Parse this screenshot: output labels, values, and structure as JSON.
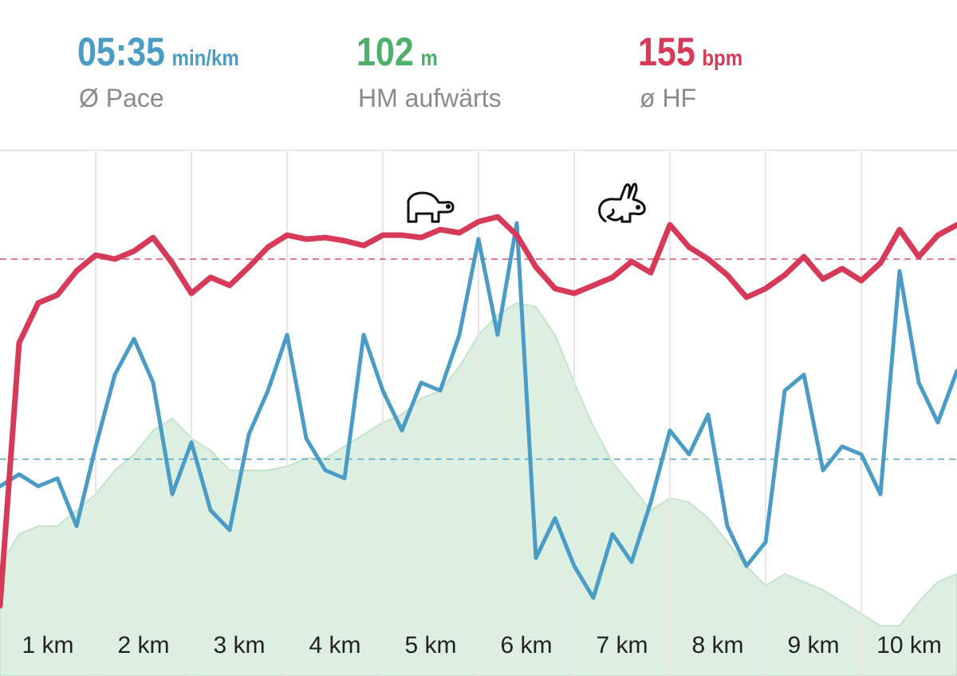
{
  "header": {
    "stats": [
      {
        "value": "05:35",
        "unit": "min/km",
        "label": "Ø Pace",
        "color": "#4a9cc6"
      },
      {
        "value": "102",
        "unit": "m",
        "label": "HM aufwärts",
        "color": "#4caf6a"
      },
      {
        "value": "155",
        "unit": "bpm",
        "label": "ø HF",
        "color": "#d63a58"
      }
    ]
  },
  "chart_data": {
    "type": "line",
    "categories": [
      "1 km",
      "2 km",
      "3 km",
      "4 km",
      "5 km",
      "6 km",
      "7 km",
      "8 km",
      "9 km",
      "10 km"
    ],
    "x": [
      0,
      0.2,
      0.4,
      0.6,
      0.8,
      1,
      1.2,
      1.4,
      1.6,
      1.8,
      2,
      2.2,
      2.4,
      2.6,
      2.8,
      3,
      3.2,
      3.4,
      3.6,
      3.8,
      4,
      4.2,
      4.4,
      4.6,
      4.8,
      5,
      5.2,
      5.4,
      5.6,
      5.8,
      6,
      6.2,
      6.4,
      6.6,
      6.8,
      7,
      7.2,
      7.4,
      7.6,
      7.8,
      8,
      8.2,
      8.4,
      8.6,
      8.8,
      9,
      9.2,
      9.4,
      9.6,
      9.8,
      10
    ],
    "xlim": [
      0,
      10
    ],
    "xticks": [
      1,
      2,
      3,
      4,
      5,
      6,
      7,
      8,
      9
    ],
    "ylim": [
      0,
      658
    ],
    "grid": true,
    "series": [
      {
        "kind": "area",
        "color": "#dcefe1",
        "values": [
          138,
          178,
          188,
          188,
          208,
          228,
          258,
          278,
          308,
          323,
          298,
          283,
          258,
          258,
          258,
          263,
          273,
          273,
          288,
          303,
          318,
          328,
          348,
          358,
          388,
          428,
          453,
          468,
          463,
          428,
          368,
          313,
          268,
          238,
          208,
          223,
          218,
          198,
          168,
          138,
          113,
          128,
          118,
          108,
          93,
          78,
          63,
          63,
          93,
          118,
          128
        ]
      },
      {
        "kind": "line",
        "color": "#4a9cc6",
        "average": 272,
        "values": [
          238,
          253,
          238,
          248,
          188,
          288,
          378,
          423,
          368,
          228,
          293,
          208,
          183,
          303,
          358,
          428,
          298,
          258,
          248,
          428,
          358,
          308,
          368,
          358,
          428,
          548,
          428,
          568,
          148,
          198,
          138,
          98,
          178,
          143,
          218,
          308,
          278,
          328,
          188,
          138,
          168,
          358,
          378,
          258,
          288,
          278,
          228,
          508,
          368,
          318,
          383
        ]
      },
      {
        "kind": "line",
        "color": "#d63a58",
        "average": 523,
        "values": [
          88,
          418,
          468,
          478,
          508,
          528,
          523,
          533,
          550,
          518,
          480,
          500,
          490,
          513,
          538,
          553,
          548,
          550,
          546,
          540,
          553,
          553,
          550,
          560,
          556,
          570,
          576,
          553,
          513,
          486,
          480,
          490,
          500,
          520,
          506,
          566,
          538,
          523,
          503,
          475,
          486,
          503,
          526,
          498,
          511,
          496,
          518,
          560,
          526,
          553,
          566
        ]
      }
    ]
  }
}
